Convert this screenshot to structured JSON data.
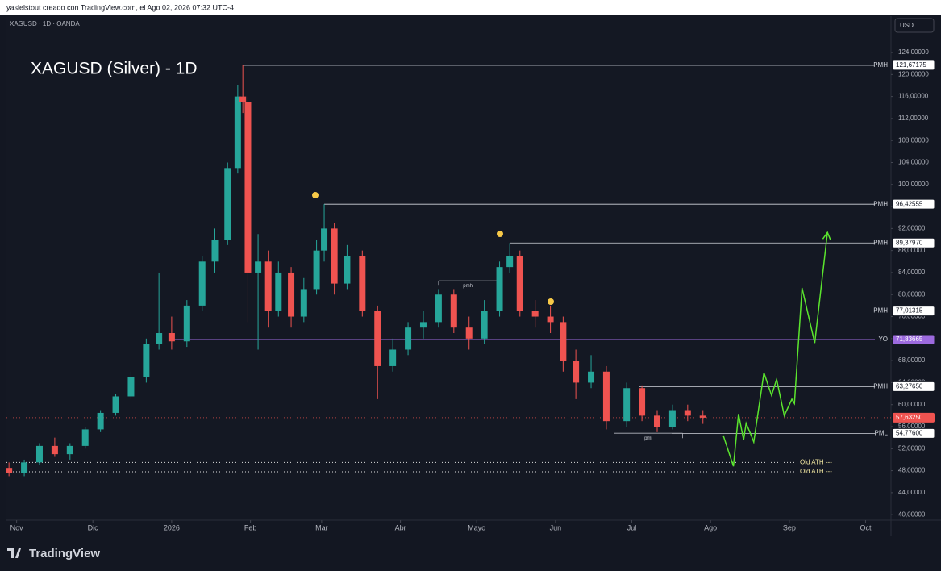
{
  "header": "yaslelstout creado con TradingView.com, el Ago 02, 2026 07:32 UTC-4",
  "symbol": "XAGUSD · 1D · OANDA",
  "currency": "USD",
  "brand": "TradingView",
  "chart_data": {
    "type": "candlestick",
    "title": "XAGUSD (Silver) - 1D",
    "colors": {
      "up": "#26a69a",
      "down": "#ef5350",
      "level": "#d1d4dc",
      "yo": "#9c6ade",
      "projection": "#5be52e"
    },
    "xlim": [
      -4,
      344
    ],
    "ylim": [
      39,
      130.6
    ],
    "xticks": [
      {
        "value": 0,
        "label": "Nov"
      },
      {
        "value": 30,
        "label": "Dic"
      },
      {
        "value": 61,
        "label": "2026"
      },
      {
        "value": 92,
        "label": "Feb"
      },
      {
        "value": 120,
        "label": "Mar"
      },
      {
        "value": 151,
        "label": "Abr"
      },
      {
        "value": 181,
        "label": "Mayo"
      },
      {
        "value": 212,
        "label": "Jun"
      },
      {
        "value": 242,
        "label": "Jul"
      },
      {
        "value": 273,
        "label": "Ago"
      },
      {
        "value": 304,
        "label": "Sep"
      },
      {
        "value": 334,
        "label": "Oct"
      }
    ],
    "yticks": [
      {
        "value": 40,
        "label": "40,00000"
      },
      {
        "value": 44,
        "label": "44,00000"
      },
      {
        "value": 48,
        "label": "48,00000"
      },
      {
        "value": 52,
        "label": "52,00000"
      },
      {
        "value": 56,
        "label": "56,00000"
      },
      {
        "value": 60,
        "label": "60,00000"
      },
      {
        "value": 64,
        "label": "64,00000"
      },
      {
        "value": 68,
        "label": "68,00000"
      },
      {
        "value": 72,
        "label": "72,00000"
      },
      {
        "value": 76,
        "label": "76,00000"
      },
      {
        "value": 80,
        "label": "80,00000"
      },
      {
        "value": 84,
        "label": "84,00000"
      },
      {
        "value": 88,
        "label": "88,00000"
      },
      {
        "value": 92,
        "label": "92,00000"
      },
      {
        "value": 96,
        "label": "96,00000"
      },
      {
        "value": 100,
        "label": "100,00000"
      },
      {
        "value": 104,
        "label": "104,00000"
      },
      {
        "value": 108,
        "label": "108,00000"
      },
      {
        "value": 112,
        "label": "112,00000"
      },
      {
        "value": 116,
        "label": "116,00000"
      },
      {
        "value": 120,
        "label": "120,00000"
      },
      {
        "value": 124,
        "label": "124,00000"
      }
    ],
    "x": [
      -3,
      3,
      9,
      15,
      21,
      27,
      33,
      39,
      45,
      51,
      56,
      61,
      67,
      73,
      78,
      83,
      87,
      89,
      91,
      95,
      99,
      103,
      108,
      113,
      118,
      121,
      125,
      130,
      136,
      142,
      148,
      154,
      160,
      166,
      172,
      178,
      184,
      190,
      194,
      198,
      204,
      210,
      215,
      220,
      226,
      232,
      240,
      246,
      252,
      258,
      264,
      270
    ],
    "open": [
      48.5,
      47.5,
      49.5,
      52.5,
      51,
      52.5,
      55.5,
      58.5,
      61.5,
      65,
      71,
      73,
      71.5,
      78,
      86,
      90,
      103,
      116,
      115,
      84,
      86,
      77,
      84,
      76,
      81,
      88,
      92,
      82,
      87,
      77,
      67,
      70,
      74,
      75,
      80,
      74,
      72,
      77,
      85,
      87,
      77,
      76,
      75,
      68,
      64,
      66,
      57,
      63,
      58,
      56,
      59,
      58
    ],
    "high": [
      49.5,
      50,
      53,
      54,
      53,
      56,
      59,
      62,
      66,
      72,
      84,
      76,
      79,
      87,
      92,
      104,
      118,
      121.67,
      116,
      91,
      88,
      86,
      85,
      83,
      90,
      96.43,
      93,
      89,
      88,
      78,
      72,
      75,
      77,
      81,
      81,
      76,
      79,
      86,
      89.38,
      88,
      79,
      78,
      76,
      70,
      69,
      67,
      64,
      63.5,
      59,
      60,
      60,
      59
    ],
    "low": [
      47,
      47,
      49,
      50.5,
      50,
      52,
      55,
      58,
      61,
      64,
      70,
      70,
      70.5,
      77,
      84,
      89,
      102,
      113,
      75,
      70,
      74,
      76,
      74,
      75,
      80,
      86,
      80,
      81,
      76,
      61,
      66,
      69,
      72,
      74,
      73,
      70,
      71,
      76,
      84,
      76,
      74,
      73,
      66,
      61,
      63,
      55.5,
      56,
      57,
      55,
      55.5,
      57,
      56.5
    ],
    "close": [
      47.5,
      49.5,
      52.5,
      51,
      52.5,
      55.5,
      58.5,
      61.5,
      65,
      71,
      73,
      71.5,
      78,
      86,
      90,
      103,
      116,
      115,
      84,
      86,
      77,
      84,
      76,
      81,
      88,
      92,
      82,
      87,
      77,
      67,
      70,
      74,
      75,
      80,
      74,
      72,
      77,
      85,
      87,
      77,
      76,
      75,
      68,
      64,
      66,
      57,
      63,
      58,
      56,
      59,
      58,
      57.63
    ],
    "last_price": {
      "value": 57.6325,
      "label": "57,63250"
    },
    "levels": [
      {
        "name": "PMH",
        "value": 121.67175,
        "label": "121,67175",
        "start": 89
      },
      {
        "name": "PMH",
        "value": 96.42555,
        "label": "96,42555",
        "start": 121
      },
      {
        "name": "PMH",
        "value": 89.3797,
        "label": "89,37970",
        "start": 194
      },
      {
        "name": "PMH",
        "value": 77.01315,
        "label": "77,01315",
        "start": 212
      },
      {
        "name": "YO",
        "value": 71.83665,
        "label": "71,83665",
        "start": 61
      },
      {
        "name": "PMH",
        "value": 63.2765,
        "label": "63,27650",
        "start": 245
      },
      {
        "name": "PML",
        "value": 54.776,
        "label": "54,77600",
        "start": 258
      }
    ],
    "old_ath": [
      {
        "name": "Old ATH ---",
        "value": 49.5
      },
      {
        "name": "Old ATH ---",
        "value": 47.8
      }
    ],
    "swing_marks": [
      {
        "name": "pmh",
        "value": 82.5,
        "start": 166,
        "end": 189
      },
      {
        "name": "pml",
        "value": 54.8,
        "start": 235,
        "end": 262
      }
    ],
    "projection": {
      "x": [
        278,
        282,
        284,
        286,
        287,
        289,
        290,
        294,
        297,
        299,
        302,
        305,
        306,
        309,
        314,
        319
      ],
      "values": [
        54.4,
        48.8,
        58.3,
        53.6,
        56.6,
        54.4,
        53.2,
        65.8,
        61.7,
        64.6,
        58.0,
        61.0,
        60.2,
        81.2,
        71.2,
        91.3
      ]
    }
  }
}
